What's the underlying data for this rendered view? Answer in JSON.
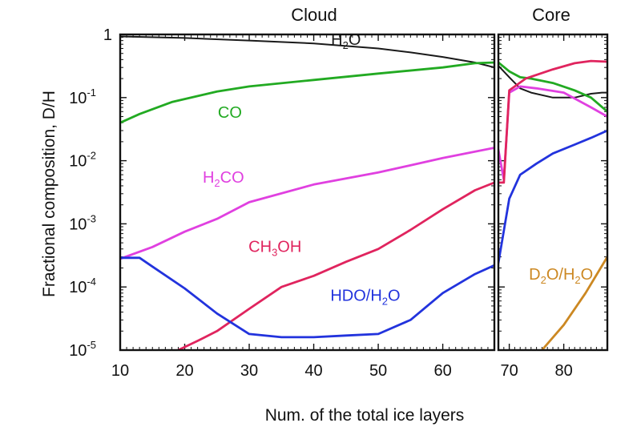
{
  "chart_data": {
    "type": "line",
    "xlabel": "Num. of the total ice layers",
    "ylabel": "Fractional composition, D/H",
    "yscale": "log",
    "ylim": [
      1e-05,
      1
    ],
    "y_ticks": [
      {
        "value": 1,
        "base": "1",
        "exp": ""
      },
      {
        "value": 0.1,
        "base": "10",
        "exp": "-1"
      },
      {
        "value": 0.01,
        "base": "10",
        "exp": "-2"
      },
      {
        "value": 0.001,
        "base": "10",
        "exp": "-3"
      },
      {
        "value": 0.0001,
        "base": "10",
        "exp": "-4"
      },
      {
        "value": 1e-05,
        "base": "10",
        "exp": "-5"
      }
    ],
    "panels": [
      {
        "title": "Cloud",
        "xlim": [
          10,
          68
        ],
        "x_ticks": [
          10,
          20,
          30,
          40,
          50,
          60
        ],
        "series": [
          {
            "name": "H2O",
            "label_parts": [
              [
                "H",
                ""
              ],
              [
                "2",
                "sub"
              ],
              [
                "O",
                ""
              ]
            ],
            "label_at": [
              45,
              0.68
            ],
            "color": "#1a1a1a",
            "points": [
              [
                10,
                0.93
              ],
              [
                20,
                0.88
              ],
              [
                30,
                0.8
              ],
              [
                40,
                0.72
              ],
              [
                50,
                0.6
              ],
              [
                55,
                0.52
              ],
              [
                60,
                0.44
              ],
              [
                65,
                0.36
              ],
              [
                68,
                0.3
              ]
            ]
          },
          {
            "name": "CO",
            "label_parts": [
              [
                "CO",
                ""
              ]
            ],
            "label_at": [
              27,
              0.048
            ],
            "color": "#22aa22",
            "points": [
              [
                10,
                0.04
              ],
              [
                13,
                0.055
              ],
              [
                18,
                0.085
              ],
              [
                25,
                0.125
              ],
              [
                30,
                0.15
              ],
              [
                40,
                0.19
              ],
              [
                50,
                0.24
              ],
              [
                60,
                0.3
              ],
              [
                65,
                0.35
              ],
              [
                68,
                0.36
              ]
            ]
          },
          {
            "name": "H2CO",
            "label_parts": [
              [
                "H",
                ""
              ],
              [
                "2",
                "sub"
              ],
              [
                "CO",
                ""
              ]
            ],
            "label_at": [
              26,
              0.0045
            ],
            "color": "#e040e0",
            "points": [
              [
                10,
                0.00028
              ],
              [
                15,
                0.00043
              ],
              [
                20,
                0.00075
              ],
              [
                25,
                0.0012
              ],
              [
                30,
                0.0022
              ],
              [
                40,
                0.0042
              ],
              [
                50,
                0.0065
              ],
              [
                60,
                0.011
              ],
              [
                68,
                0.016
              ]
            ]
          },
          {
            "name": "CH3OH",
            "label_parts": [
              [
                "CH",
                ""
              ],
              [
                "3",
                "sub"
              ],
              [
                "OH",
                ""
              ]
            ],
            "label_at": [
              34,
              0.00036
            ],
            "color": "#e0245e",
            "points": [
              [
                19,
                1e-05
              ],
              [
                22,
                1.4e-05
              ],
              [
                25,
                2e-05
              ],
              [
                30,
                4.5e-05
              ],
              [
                35,
                0.0001
              ],
              [
                40,
                0.00015
              ],
              [
                45,
                0.00025
              ],
              [
                50,
                0.0004
              ],
              [
                55,
                0.0008
              ],
              [
                60,
                0.0017
              ],
              [
                65,
                0.0034
              ],
              [
                68,
                0.0045
              ]
            ]
          },
          {
            "name": "HDO/H2O",
            "label_parts": [
              [
                "HDO/H",
                ""
              ],
              [
                "2",
                "sub"
              ],
              [
                "O",
                ""
              ]
            ],
            "label_at": [
              48,
              6e-05
            ],
            "color": "#2233dd",
            "points": [
              [
                10,
                0.00029
              ],
              [
                13,
                0.00029
              ],
              [
                15,
                0.00021
              ],
              [
                20,
                9.5e-05
              ],
              [
                25,
                3.8e-05
              ],
              [
                30,
                1.8e-05
              ],
              [
                35,
                1.6e-05
              ],
              [
                40,
                1.6e-05
              ],
              [
                45,
                1.7e-05
              ],
              [
                50,
                1.8e-05
              ],
              [
                55,
                3e-05
              ],
              [
                60,
                8e-05
              ],
              [
                65,
                0.00016
              ],
              [
                68,
                0.00022
              ]
            ]
          }
        ]
      },
      {
        "title": "Core",
        "xlim": [
          68,
          88
        ],
        "x_ticks": [
          70,
          80
        ],
        "series": [
          {
            "name": "H2O",
            "color": "#1a1a1a",
            "points": [
              [
                68,
                0.32
              ],
              [
                70,
                0.21
              ],
              [
                72,
                0.14
              ],
              [
                74,
                0.12
              ],
              [
                78,
                0.1
              ],
              [
                82,
                0.1
              ],
              [
                85,
                0.115
              ],
              [
                87,
                0.12
              ],
              [
                88,
                0.12
              ]
            ]
          },
          {
            "name": "CO",
            "color": "#22aa22",
            "points": [
              [
                68,
                0.36
              ],
              [
                70,
                0.26
              ],
              [
                72,
                0.21
              ],
              [
                74,
                0.2
              ],
              [
                78,
                0.17
              ],
              [
                82,
                0.13
              ],
              [
                85,
                0.1
              ],
              [
                88,
                0.06
              ]
            ]
          },
          {
            "name": "H2CO",
            "color": "#e040e0",
            "points": [
              [
                68,
                0.015
              ],
              [
                69,
                0.005
              ],
              [
                70,
                0.12
              ],
              [
                72,
                0.15
              ],
              [
                75,
                0.14
              ],
              [
                80,
                0.12
              ],
              [
                85,
                0.07
              ],
              [
                88,
                0.05
              ]
            ]
          },
          {
            "name": "CH3OH",
            "color": "#e0245e",
            "points": [
              [
                68,
                0.0045
              ],
              [
                69,
                0.0045
              ],
              [
                70,
                0.13
              ],
              [
                73,
                0.2
              ],
              [
                78,
                0.28
              ],
              [
                82,
                0.35
              ],
              [
                85,
                0.38
              ],
              [
                88,
                0.37
              ]
            ]
          },
          {
            "name": "HDO/H2O",
            "color": "#2233dd",
            "points": [
              [
                68,
                0.00024
              ],
              [
                70,
                0.0025
              ],
              [
                72,
                0.006
              ],
              [
                75,
                0.009
              ],
              [
                78,
                0.013
              ],
              [
                82,
                0.018
              ],
              [
                85,
                0.023
              ],
              [
                88,
                0.03
              ]
            ]
          },
          {
            "name": "D2O/H2O",
            "label_parts": [
              [
                "D",
                ""
              ],
              [
                "2",
                "sub"
              ],
              [
                "O/H",
                ""
              ],
              [
                "2",
                "sub"
              ],
              [
                "O",
                ""
              ]
            ],
            "label_at": [
              79.5,
              0.00013
            ],
            "color": "#cc8822",
            "points": [
              [
                76,
                1e-05
              ],
              [
                80,
                2.5e-05
              ],
              [
                84,
                8e-05
              ],
              [
                88,
                0.0003
              ]
            ]
          }
        ]
      }
    ]
  }
}
